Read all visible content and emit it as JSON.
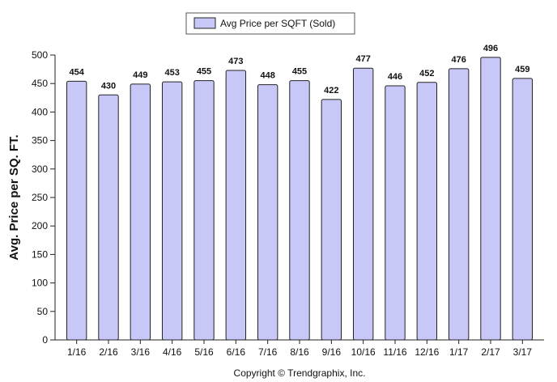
{
  "chart_data": {
    "type": "bar",
    "categories": [
      "1/16",
      "2/16",
      "3/16",
      "4/16",
      "5/16",
      "6/16",
      "7/16",
      "8/16",
      "9/16",
      "10/16",
      "11/16",
      "12/16",
      "1/17",
      "2/17",
      "3/17"
    ],
    "series": [
      {
        "name": "Avg Price per SQFT (Sold)",
        "values": [
          454,
          430,
          449,
          453,
          455,
          473,
          448,
          455,
          422,
          477,
          446,
          452,
          476,
          496,
          459
        ]
      }
    ],
    "ylabel": "Avg. Price per SQ. FT.",
    "xlabel": "",
    "ylim": [
      0,
      500
    ],
    "yticks": [
      0,
      50,
      100,
      150,
      200,
      250,
      300,
      350,
      400,
      450,
      500
    ],
    "data_labels": true,
    "legend_position": "top-center",
    "grid": false,
    "colors": {
      "bar_fill": "#c8c8f8",
      "bar_stroke": "#222222"
    }
  },
  "footer": {
    "copyright": "Copyright © Trendgraphix, Inc."
  }
}
